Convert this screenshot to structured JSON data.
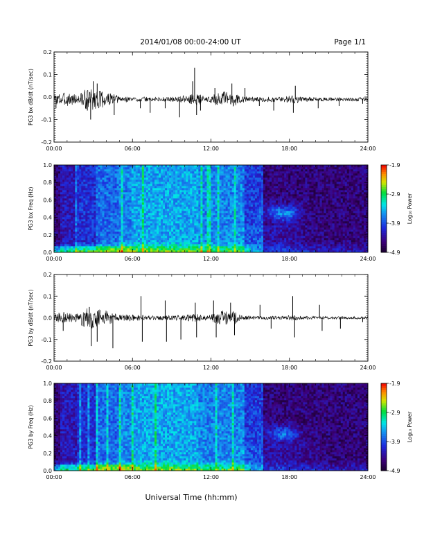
{
  "header": {
    "date_range": "2014/01/08  00:00-24:00 UT",
    "page": "Page 1/1"
  },
  "xlabel": "Universal Time (hh:mm)",
  "colors": {
    "trace": "#000000",
    "background": "#ffffff"
  },
  "chart_data": [
    {
      "type": "line",
      "ylabel": "PG3 bx dB/dt (nT/sec)",
      "xlim": [
        0,
        24
      ],
      "ylim": [
        -0.2,
        0.2
      ],
      "xticks": [
        "00:00",
        "06:00",
        "12:00",
        "18:00",
        "24:00"
      ],
      "yticks": [
        "-0.2",
        "-0.1",
        "0.0",
        "0.1",
        "0.2"
      ],
      "baseline": -0.01,
      "noise": [
        [
          0,
          0.02
        ],
        [
          0.6,
          0.03
        ],
        [
          1.2,
          0.03
        ],
        [
          1.8,
          0.02
        ],
        [
          2.2,
          0.04
        ],
        [
          2.8,
          0.05
        ],
        [
          3.5,
          0.04
        ],
        [
          4.2,
          0.03
        ],
        [
          5.0,
          0.015
        ],
        [
          6.0,
          0.012
        ],
        [
          7.5,
          0.01
        ],
        [
          8.5,
          0.01
        ],
        [
          9.5,
          0.012
        ],
        [
          10.3,
          0.02
        ],
        [
          11.0,
          0.025
        ],
        [
          11.8,
          0.01
        ],
        [
          12.3,
          0.025
        ],
        [
          13.0,
          0.035
        ],
        [
          13.8,
          0.03
        ],
        [
          14.3,
          0.015
        ],
        [
          15.5,
          0.01
        ],
        [
          17.6,
          0.012
        ],
        [
          18.2,
          0.02
        ],
        [
          19.0,
          0.01
        ],
        [
          21.0,
          0.008
        ],
        [
          24,
          0.008
        ]
      ],
      "spikes": [
        [
          0.15,
          -0.05
        ],
        [
          2.55,
          -0.06
        ],
        [
          2.8,
          -0.1
        ],
        [
          3.0,
          0.07
        ],
        [
          3.3,
          0.06
        ],
        [
          4.6,
          -0.08
        ],
        [
          6.6,
          -0.05
        ],
        [
          7.35,
          -0.07
        ],
        [
          8.5,
          -0.05
        ],
        [
          9.6,
          -0.09
        ],
        [
          10.6,
          0.07
        ],
        [
          10.75,
          0.13
        ],
        [
          10.9,
          -0.08
        ],
        [
          11.2,
          -0.06
        ],
        [
          12.3,
          0.04
        ],
        [
          13.6,
          0.06
        ],
        [
          14.6,
          0.04
        ],
        [
          15.7,
          -0.04
        ],
        [
          16.8,
          -0.06
        ],
        [
          18.3,
          -0.07
        ],
        [
          18.45,
          0.05
        ],
        [
          20.2,
          -0.05
        ],
        [
          21.8,
          -0.04
        ],
        [
          23.6,
          -0.03
        ]
      ]
    },
    {
      "type": "heatmap",
      "ylabel": "PG3 bx Freq (Hz)",
      "xlim": [
        0,
        24
      ],
      "ylim": [
        0.0,
        1.0
      ],
      "xticks": [
        "00:00",
        "06:00",
        "12:00",
        "18:00",
        "24:00"
      ],
      "yticks": [
        "0.0",
        "0.2",
        "0.4",
        "0.6",
        "0.8",
        "1.0"
      ],
      "colorbar": {
        "label": "Log₁₀ Power",
        "ticks": [
          "-1.9",
          "-2.9",
          "-3.9",
          "-4.9"
        ],
        "range": [
          -4.9,
          -1.9
        ]
      },
      "seed": 7,
      "features": {
        "blob": [
          17.5,
          0.45
        ],
        "blob_amp": 1.3,
        "night_start": 15
      }
    },
    {
      "type": "line",
      "ylabel": "PG3 by dB/dt (nT/sec)",
      "xlim": [
        0,
        24
      ],
      "ylim": [
        -0.2,
        0.2
      ],
      "xticks": [
        "00:00",
        "06:00",
        "12:00",
        "18:00",
        "24:00"
      ],
      "yticks": [
        "-0.2",
        "-0.1",
        "0.0",
        "0.1",
        "0.2"
      ],
      "baseline": 0.0,
      "noise": [
        [
          0,
          0.015
        ],
        [
          0.6,
          0.03
        ],
        [
          1.2,
          0.02
        ],
        [
          1.8,
          0.02
        ],
        [
          2.2,
          0.04
        ],
        [
          2.8,
          0.05
        ],
        [
          3.5,
          0.045
        ],
        [
          4.2,
          0.03
        ],
        [
          5.0,
          0.015
        ],
        [
          6.0,
          0.015
        ],
        [
          7.5,
          0.01
        ],
        [
          8.5,
          0.01
        ],
        [
          9.5,
          0.012
        ],
        [
          10.3,
          0.015
        ],
        [
          11.0,
          0.02
        ],
        [
          11.8,
          0.01
        ],
        [
          12.3,
          0.025
        ],
        [
          13.0,
          0.035
        ],
        [
          13.8,
          0.03
        ],
        [
          14.3,
          0.012
        ],
        [
          15.5,
          0.008
        ],
        [
          17.6,
          0.008
        ],
        [
          18.2,
          0.012
        ],
        [
          19.0,
          0.008
        ],
        [
          21.0,
          0.006
        ],
        [
          24,
          0.006
        ]
      ],
      "spikes": [
        [
          0.7,
          -0.06
        ],
        [
          2.7,
          0.05
        ],
        [
          2.85,
          -0.13
        ],
        [
          3.3,
          -0.11
        ],
        [
          4.5,
          -0.14
        ],
        [
          6.65,
          0.1
        ],
        [
          6.75,
          -0.11
        ],
        [
          8.5,
          0.08
        ],
        [
          8.6,
          -0.11
        ],
        [
          9.7,
          -0.1
        ],
        [
          10.8,
          0.07
        ],
        [
          10.9,
          -0.09
        ],
        [
          12.2,
          0.08
        ],
        [
          12.4,
          -0.09
        ],
        [
          13.5,
          0.07
        ],
        [
          13.8,
          -0.08
        ],
        [
          15.75,
          0.06
        ],
        [
          16.6,
          -0.05
        ],
        [
          18.25,
          0.1
        ],
        [
          18.4,
          -0.09
        ],
        [
          20.3,
          0.06
        ],
        [
          20.5,
          -0.06
        ],
        [
          21.9,
          -0.05
        ],
        [
          23.6,
          -0.02
        ]
      ]
    },
    {
      "type": "heatmap",
      "ylabel": "PG3 by Freq (Hz)",
      "xlim": [
        0,
        24
      ],
      "ylim": [
        0.0,
        1.0
      ],
      "xticks": [
        "00:00",
        "06:00",
        "12:00",
        "18:00",
        "24:00"
      ],
      "yticks": [
        "0.0",
        "0.2",
        "0.4",
        "0.6",
        "0.8",
        "1.0"
      ],
      "colorbar": {
        "label": "Log₁₀ Power",
        "ticks": [
          "-1.9",
          "-2.9",
          "-3.9",
          "-4.9"
        ],
        "range": [
          -4.9,
          -1.9
        ]
      },
      "seed": 19,
      "features": {
        "blob": [
          17.5,
          0.42
        ],
        "blob_amp": 1.1,
        "night_start": 15
      }
    }
  ]
}
